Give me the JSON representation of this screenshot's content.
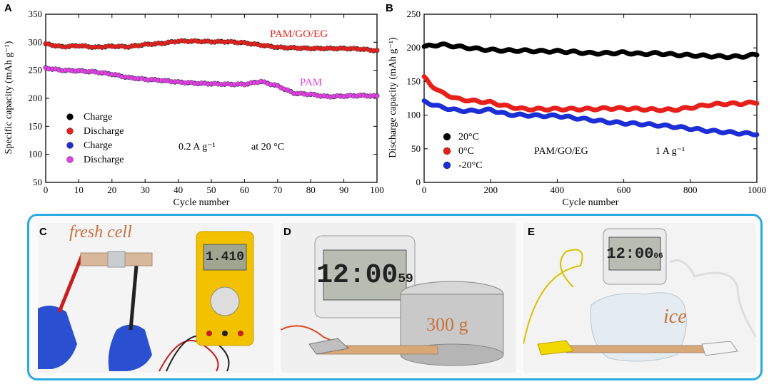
{
  "chart_data": [
    {
      "panel": "A",
      "type": "scatter",
      "xlabel": "Cycle number",
      "ylabel": "Specific capacity (mAh g⁻¹)",
      "xlim": [
        0,
        100
      ],
      "ylim": [
        50,
        350
      ],
      "xticks": [
        "0",
        "10",
        "20",
        "30",
        "40",
        "50",
        "60",
        "70",
        "80",
        "90",
        "100"
      ],
      "yticks": [
        "50",
        "100",
        "150",
        "200",
        "250",
        "300",
        "350"
      ],
      "annotations": {
        "pamgoeg": "PAM/GO/EG",
        "pam": "PAM",
        "rate": "0.2 A g⁻¹",
        "temp": "at 20 °C"
      },
      "series": [
        {
          "name": "Charge",
          "group": "PAM/GO/EG",
          "color": "#000000",
          "x": [
            0,
            5,
            10,
            15,
            20,
            25,
            30,
            35,
            40,
            45,
            50,
            55,
            60,
            65,
            70,
            75,
            80,
            85,
            90,
            95,
            100
          ],
          "y": [
            297,
            292,
            294,
            291,
            293,
            292,
            296,
            298,
            302,
            302,
            301,
            301,
            299,
            295,
            291,
            290,
            289,
            289,
            289,
            288,
            285
          ]
        },
        {
          "name": "Discharge",
          "group": "PAM/GO/EG",
          "color": "#e8201c",
          "x": [
            0,
            5,
            10,
            15,
            20,
            25,
            30,
            35,
            40,
            45,
            50,
            55,
            60,
            65,
            70,
            75,
            80,
            85,
            90,
            95,
            100
          ],
          "y": [
            297,
            292,
            294,
            291,
            293,
            292,
            296,
            298,
            302,
            302,
            301,
            301,
            299,
            295,
            291,
            290,
            289,
            289,
            289,
            288,
            285
          ]
        },
        {
          "name": "Charge",
          "group": "PAM",
          "color": "#1c2fd6",
          "x": [
            0,
            5,
            10,
            15,
            20,
            25,
            30,
            35,
            40,
            45,
            50,
            55,
            60,
            65,
            70,
            75,
            80,
            85,
            90,
            95,
            100
          ],
          "y": [
            254,
            250,
            249,
            247,
            243,
            237,
            234,
            232,
            229,
            227,
            226,
            225,
            225,
            230,
            222,
            209,
            207,
            203,
            204,
            205,
            204
          ]
        },
        {
          "name": "Discharge",
          "group": "PAM",
          "color": "#e33fe3",
          "x": [
            0,
            5,
            10,
            15,
            20,
            25,
            30,
            35,
            40,
            45,
            50,
            55,
            60,
            65,
            70,
            75,
            80,
            85,
            90,
            95,
            100
          ],
          "y": [
            254,
            250,
            249,
            247,
            243,
            237,
            234,
            232,
            229,
            227,
            226,
            225,
            225,
            230,
            222,
            209,
            207,
            203,
            204,
            205,
            204
          ]
        }
      ]
    },
    {
      "panel": "B",
      "type": "scatter",
      "xlabel": "Cycle number",
      "ylabel": "Discharge capacity (mAh g⁻¹)",
      "xlim": [
        0,
        1000
      ],
      "ylim": [
        0,
        250
      ],
      "xticks": [
        "0",
        "200",
        "400",
        "600",
        "800",
        "1000"
      ],
      "yticks": [
        "0",
        "50",
        "100",
        "150",
        "200",
        "250"
      ],
      "annotations": {
        "material": "PAM/GO/EG",
        "rate": "1 A g⁻¹"
      },
      "series": [
        {
          "name": "20°C",
          "color": "#000000",
          "x": [
            0,
            50,
            100,
            150,
            200,
            250,
            300,
            350,
            400,
            450,
            500,
            550,
            600,
            650,
            700,
            750,
            800,
            850,
            900,
            950,
            1000
          ],
          "y": [
            202,
            205,
            202,
            199,
            197,
            196,
            196,
            195,
            195,
            194,
            192,
            192,
            193,
            191,
            192,
            190,
            189,
            188,
            187,
            187,
            190
          ]
        },
        {
          "name": "0°C",
          "color": "#e8201c",
          "x": [
            0,
            20,
            50,
            100,
            150,
            200,
            250,
            300,
            350,
            400,
            450,
            500,
            550,
            600,
            650,
            700,
            750,
            800,
            850,
            900,
            950,
            1000
          ],
          "y": [
            156,
            145,
            134,
            124,
            121,
            119,
            113,
            109,
            109,
            109,
            109,
            109,
            110,
            110,
            109,
            108,
            108,
            111,
            115,
            117,
            117,
            119
          ]
        },
        {
          "name": "-20°C",
          "color": "#1c2fd6",
          "x": [
            0,
            50,
            100,
            150,
            200,
            250,
            300,
            350,
            400,
            450,
            500,
            550,
            600,
            650,
            700,
            750,
            800,
            850,
            900,
            950,
            1000
          ],
          "y": [
            120,
            112,
            107,
            106,
            108,
            101,
            100,
            99,
            99,
            96,
            93,
            90,
            88,
            87,
            85,
            83,
            80,
            77,
            75,
            73,
            72
          ]
        }
      ]
    }
  ],
  "photos": {
    "c": {
      "label": "C",
      "caption": "fresh cell",
      "voltage": "1.410"
    },
    "d": {
      "label": "D",
      "clock": "12:00",
      "seconds": "59",
      "weight": "300 g"
    },
    "e": {
      "label": "E",
      "clock": "12:00",
      "seconds": "06",
      "caption": "ice"
    }
  },
  "colors": {
    "frame": "#29abe2",
    "accent_text": "#c8703a"
  }
}
